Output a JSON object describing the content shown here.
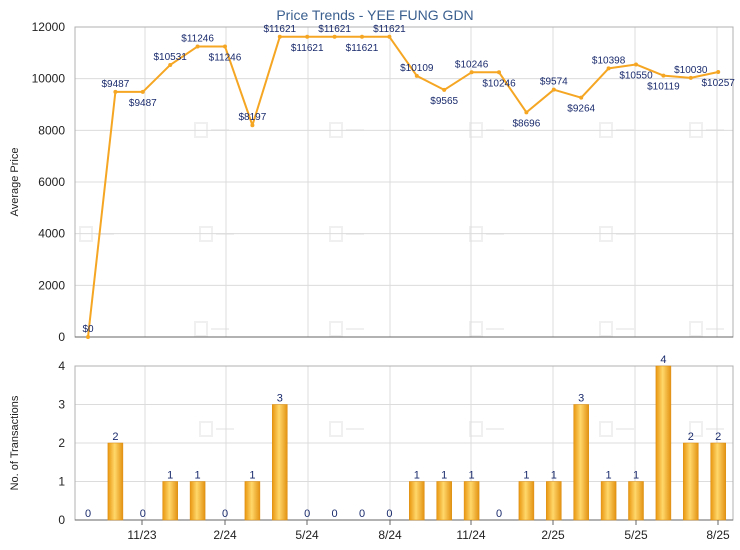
{
  "chart_data": [
    {
      "type": "line",
      "title": "Price Trends - YEE FUNG GDN",
      "xlabel": "",
      "ylabel": "Average Price",
      "ylim": [
        0,
        12000
      ],
      "yticks": [
        0,
        2000,
        4000,
        6000,
        8000,
        10000,
        12000
      ],
      "grid": true,
      "series": [
        {
          "values": [
            0,
            9487,
            9487,
            10531,
            11246,
            11246,
            8197,
            11621,
            11621,
            11621,
            11621,
            11621,
            10109,
            9565,
            10246,
            10246,
            8696,
            9574,
            9264,
            10398,
            10550,
            10119,
            10030,
            10257
          ],
          "labels": [
            "$0",
            "$9487",
            "$9487",
            "$10531",
            "$11246",
            "$11246",
            "$8197",
            "$11621",
            "$11621",
            "$11621",
            "$11621",
            "$11621",
            "$10109",
            "$9565",
            "$10246",
            "$10246",
            "$8696",
            "$9574",
            "$9264",
            "$10398",
            "$10550",
            "$10119",
            "$10030",
            "$10257"
          ]
        }
      ],
      "color": "#f5a623"
    },
    {
      "type": "bar",
      "xlabel": "",
      "ylabel": "No. of Transactions",
      "ylim": [
        0,
        4
      ],
      "yticks": [
        0,
        1,
        2,
        3,
        4
      ],
      "grid": true,
      "categories": [
        "11/23",
        "2/24",
        "5/24",
        "8/24",
        "11/24",
        "2/25",
        "5/25",
        "8/25"
      ],
      "values": [
        0,
        2,
        0,
        1,
        1,
        0,
        1,
        3,
        0,
        0,
        0,
        0,
        1,
        1,
        1,
        0,
        1,
        1,
        3,
        1,
        1,
        4,
        2,
        2
      ],
      "labels": [
        "0",
        "2",
        "0",
        "1",
        "1",
        "0",
        "1",
        "3",
        "0",
        "0",
        "0",
        "0",
        "1",
        "1",
        "1",
        "0",
        "1",
        "1",
        "3",
        "1",
        "1",
        "4",
        "2",
        "2"
      ],
      "color": "#f5a623"
    }
  ]
}
